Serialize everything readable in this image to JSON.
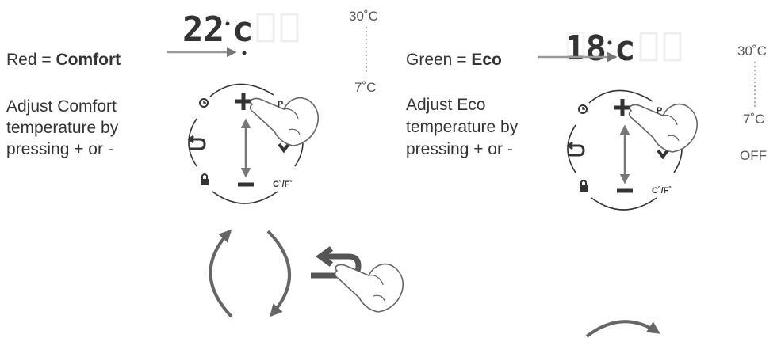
{
  "left": {
    "display": {
      "digits": "22",
      "unit": "c"
    },
    "label": {
      "prefix": "Red = ",
      "bold": "Comfort"
    },
    "instruction": [
      "Adjust Comfort",
      "temperature by",
      "pressing + or -"
    ],
    "range": {
      "max": "30˚C",
      "min": "7˚C"
    }
  },
  "right": {
    "display": {
      "digits": "18",
      "unit": "c"
    },
    "label": {
      "prefix": "Green = ",
      "bold": "Eco"
    },
    "instruction": [
      "Adjust Eco",
      "temperature by",
      "pressing + or -"
    ],
    "range": {
      "max": "30˚C",
      "min": "7˚C",
      "off": "OFF"
    }
  },
  "keypad": {
    "program": "P",
    "unit": "C˚/F˚"
  }
}
